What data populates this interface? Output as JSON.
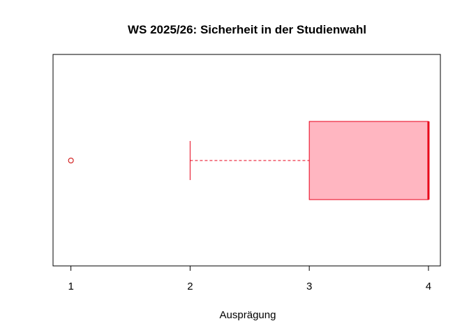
{
  "chart_data": {
    "type": "boxplot",
    "orientation": "horizontal",
    "title": "WS 2025/26: Sicherheit in der Studienwahl",
    "xlabel": "Ausprägung",
    "ylabel": "",
    "xlim": [
      0.85,
      4.1
    ],
    "x_ticks": [
      1,
      2,
      3,
      4
    ],
    "x_tick_labels": [
      "1",
      "2",
      "3",
      "4"
    ],
    "grid": false,
    "box": {
      "whisker_low": 2,
      "q1": 3,
      "median": 4,
      "q3": 4,
      "whisker_high": 4,
      "outliers": [
        1
      ]
    },
    "colors": {
      "box_fill": "#FFB6C1",
      "box_border": "#E8001A",
      "median": "#E8001A",
      "whisker": "#E8001A",
      "outlier": "#CC0000"
    }
  }
}
